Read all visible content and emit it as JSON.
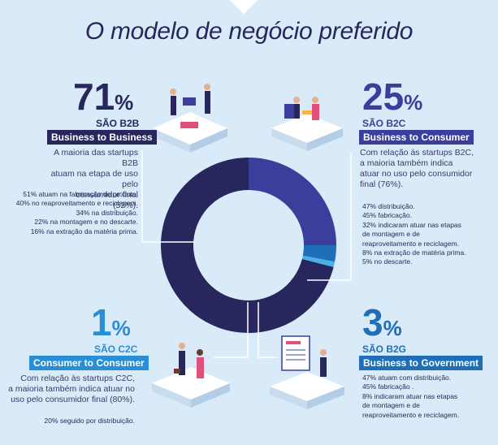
{
  "title": "O modelo de negócio preferido",
  "chart_data": {
    "type": "pie",
    "categories": [
      "B2B",
      "B2C",
      "C2C",
      "B2G"
    ],
    "values": [
      71,
      25,
      1,
      3
    ],
    "colors": [
      "#27275e",
      "#3b3f9c",
      "#4ab0e8",
      "#1e6fb8"
    ]
  },
  "segments": {
    "b2b": {
      "value": "71",
      "unit": "%",
      "label": "SÃO B2B",
      "badge": "Business to Business",
      "desc": [
        "A maioria das startups B2B",
        "atuam na etapa de uso pelo",
        "consumidor final (52%)."
      ],
      "details": [
        "51% atuam na fabricação do produto.",
        "40% no reaproveitamento e reciclagem.",
        "34% na distribuição.",
        "22% na montagem e no descarte.",
        "16% na extração da matéria prima."
      ]
    },
    "b2c": {
      "value": "25",
      "unit": "%",
      "label": "SÃO B2C",
      "badge": "Business to Consumer",
      "desc": [
        "Com relação às startups B2C,",
        "a maioria também indica",
        "atuar no uso pelo consumidor",
        "final (76%)."
      ],
      "details": [
        "47% distribuição.",
        "45% fabricação.",
        "32% indicaram atuar nas etapas",
        "de montagem e de",
        "reaproveitamento e reciclagem.",
        "8% na extração de matéria prima.",
        "5% no descarte."
      ]
    },
    "c2c": {
      "value": "1",
      "unit": "%",
      "label": "SÃO C2C",
      "badge": "Consumer to Consumer",
      "desc": [
        "Com relação às startups C2C,",
        "a maioria também indica atuar no",
        "uso pelo consumidor final (80%)."
      ],
      "details": [
        "20% seguido por distribuição."
      ]
    },
    "b2g": {
      "value": "3",
      "unit": "%",
      "label": "SÃO B2G",
      "badge": "Business to Government",
      "details": [
        "47% atuam com distribuição.",
        "45% fabricação .",
        "8% indicaram atuar nas etapas",
        "de montagem e de",
        "reaproveitamento e reciclagem."
      ]
    }
  }
}
